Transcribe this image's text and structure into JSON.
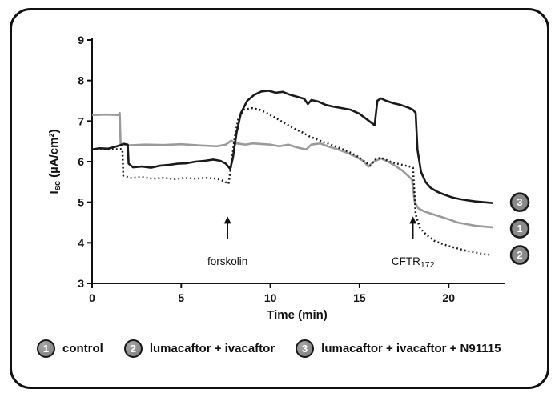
{
  "chart_data": {
    "type": "line",
    "title": "",
    "xlabel": "Time (min)",
    "ylabel": "I_sc (µA/cm²)",
    "ylabel_parts": {
      "main": "I",
      "sub": "sc",
      "units": " (µA/cm²)"
    },
    "xlim": [
      0,
      23
    ],
    "ylim": [
      3,
      9
    ],
    "xticks": [
      0,
      5,
      10,
      15,
      20
    ],
    "yticks": [
      3,
      4,
      5,
      6,
      7,
      8,
      9
    ],
    "grid": false,
    "legend_position": "bottom",
    "colors": {
      "axis": "#111111",
      "gray_series": "#9a9a9a",
      "black_series": "#1a1a1a",
      "badge_fill": "#8a8a8a"
    },
    "annotations": [
      {
        "label": "forskolin",
        "sub": "",
        "x": 7.6,
        "arrow_base": 4.1,
        "arrow_tip": 4.65,
        "text_y": 3.45
      },
      {
        "label": "CFTR",
        "sub": "172",
        "x": 18.0,
        "arrow_base": 4.1,
        "arrow_tip": 4.65,
        "text_y": 3.45
      }
    ],
    "series": [
      {
        "id": "1",
        "name": "control",
        "color": "#9a9a9a",
        "style": "solid",
        "width": 2.6,
        "end_label_y": 4.35,
        "points": [
          [
            0,
            7.15
          ],
          [
            0.8,
            7.16
          ],
          [
            1.45,
            7.15
          ],
          [
            1.55,
            7.2
          ],
          [
            1.6,
            6.45
          ],
          [
            2,
            6.4
          ],
          [
            3,
            6.42
          ],
          [
            4,
            6.41
          ],
          [
            5,
            6.43
          ],
          [
            6,
            6.4
          ],
          [
            7,
            6.38
          ],
          [
            7.5,
            6.42
          ],
          [
            7.8,
            6.52
          ],
          [
            8.1,
            6.45
          ],
          [
            8.6,
            6.42
          ],
          [
            9,
            6.45
          ],
          [
            10,
            6.42
          ],
          [
            10.5,
            6.38
          ],
          [
            11,
            6.42
          ],
          [
            11.5,
            6.35
          ],
          [
            12,
            6.3
          ],
          [
            12.3,
            6.42
          ],
          [
            12.8,
            6.45
          ],
          [
            13.2,
            6.38
          ],
          [
            13.8,
            6.3
          ],
          [
            14.3,
            6.22
          ],
          [
            14.8,
            6.12
          ],
          [
            15.2,
            6.02
          ],
          [
            15.5,
            5.88
          ],
          [
            15.8,
            6.0
          ],
          [
            16.2,
            6.08
          ],
          [
            16.6,
            6.0
          ],
          [
            17,
            5.9
          ],
          [
            17.4,
            5.78
          ],
          [
            17.8,
            5.62
          ],
          [
            17.95,
            5.55
          ],
          [
            18.1,
            5.0
          ],
          [
            18.3,
            4.85
          ],
          [
            18.6,
            4.78
          ],
          [
            19,
            4.72
          ],
          [
            19.5,
            4.65
          ],
          [
            20,
            4.58
          ],
          [
            20.5,
            4.5
          ],
          [
            21,
            4.46
          ],
          [
            21.5,
            4.42
          ],
          [
            22,
            4.4
          ],
          [
            22.5,
            4.38
          ]
        ]
      },
      {
        "id": "2",
        "name": "lumacaftor + ivacaftor",
        "color": "#1a1a1a",
        "style": "dotted",
        "width": 2.5,
        "end_label_y": 3.7,
        "points": [
          [
            0,
            6.3
          ],
          [
            0.5,
            6.32
          ],
          [
            1,
            6.3
          ],
          [
            1.6,
            6.31
          ],
          [
            1.7,
            6.3
          ],
          [
            1.75,
            5.65
          ],
          [
            2.2,
            5.6
          ],
          [
            2.8,
            5.62
          ],
          [
            3.4,
            5.58
          ],
          [
            4,
            5.6
          ],
          [
            4.6,
            5.57
          ],
          [
            5.2,
            5.6
          ],
          [
            5.8,
            5.58
          ],
          [
            6.4,
            5.6
          ],
          [
            7,
            5.58
          ],
          [
            7.4,
            5.52
          ],
          [
            7.65,
            5.45
          ],
          [
            7.8,
            5.9
          ],
          [
            8,
            6.6
          ],
          [
            8.2,
            7.05
          ],
          [
            8.5,
            7.28
          ],
          [
            9,
            7.32
          ],
          [
            9.4,
            7.28
          ],
          [
            9.8,
            7.2
          ],
          [
            10.2,
            7.1
          ],
          [
            10.6,
            7.0
          ],
          [
            11,
            6.9
          ],
          [
            11.4,
            6.8
          ],
          [
            11.8,
            6.72
          ],
          [
            12.2,
            6.62
          ],
          [
            12.6,
            6.55
          ],
          [
            13,
            6.48
          ],
          [
            13.4,
            6.42
          ],
          [
            13.8,
            6.35
          ],
          [
            14.2,
            6.28
          ],
          [
            14.6,
            6.2
          ],
          [
            15,
            6.1
          ],
          [
            15.3,
            6.0
          ],
          [
            15.6,
            5.9
          ],
          [
            15.9,
            6.05
          ],
          [
            16.2,
            6.1
          ],
          [
            16.6,
            6.02
          ],
          [
            17,
            5.96
          ],
          [
            17.4,
            5.92
          ],
          [
            17.8,
            5.88
          ],
          [
            18.0,
            5.85
          ],
          [
            18.15,
            4.7
          ],
          [
            18.4,
            4.35
          ],
          [
            18.8,
            4.18
          ],
          [
            19.2,
            4.05
          ],
          [
            19.6,
            3.98
          ],
          [
            20,
            3.92
          ],
          [
            20.5,
            3.86
          ],
          [
            21,
            3.8
          ],
          [
            21.5,
            3.76
          ],
          [
            22,
            3.72
          ],
          [
            22.4,
            3.7
          ]
        ]
      },
      {
        "id": "3",
        "name": "lumacaftor + ivacaftor + N91115",
        "color": "#1a1a1a",
        "style": "solid",
        "width": 2.6,
        "end_label_y": 5.0,
        "points": [
          [
            0,
            6.3
          ],
          [
            0.4,
            6.33
          ],
          [
            0.9,
            6.32
          ],
          [
            1.4,
            6.38
          ],
          [
            1.8,
            6.44
          ],
          [
            2.0,
            6.42
          ],
          [
            2.05,
            5.95
          ],
          [
            2.3,
            5.86
          ],
          [
            2.8,
            5.88
          ],
          [
            3.3,
            5.85
          ],
          [
            3.8,
            5.9
          ],
          [
            4.3,
            5.92
          ],
          [
            4.8,
            5.95
          ],
          [
            5.3,
            5.96
          ],
          [
            5.8,
            6.0
          ],
          [
            6.3,
            6.02
          ],
          [
            6.8,
            6.05
          ],
          [
            7.2,
            6.02
          ],
          [
            7.5,
            5.95
          ],
          [
            7.75,
            5.82
          ],
          [
            7.9,
            6.1
          ],
          [
            8.1,
            6.7
          ],
          [
            8.35,
            7.2
          ],
          [
            8.7,
            7.5
          ],
          [
            9.1,
            7.65
          ],
          [
            9.5,
            7.73
          ],
          [
            9.9,
            7.75
          ],
          [
            10.3,
            7.7
          ],
          [
            10.7,
            7.72
          ],
          [
            11.1,
            7.65
          ],
          [
            11.5,
            7.6
          ],
          [
            11.9,
            7.55
          ],
          [
            12.1,
            7.42
          ],
          [
            12.3,
            7.52
          ],
          [
            12.7,
            7.48
          ],
          [
            13.1,
            7.4
          ],
          [
            13.5,
            7.36
          ],
          [
            14,
            7.32
          ],
          [
            14.5,
            7.28
          ],
          [
            15,
            7.18
          ],
          [
            15.3,
            7.08
          ],
          [
            15.6,
            6.98
          ],
          [
            15.85,
            6.9
          ],
          [
            16.0,
            7.5
          ],
          [
            16.2,
            7.56
          ],
          [
            16.5,
            7.5
          ],
          [
            16.9,
            7.44
          ],
          [
            17.3,
            7.4
          ],
          [
            17.7,
            7.34
          ],
          [
            18.0,
            7.28
          ],
          [
            18.15,
            7.2
          ],
          [
            18.25,
            6.3
          ],
          [
            18.45,
            5.75
          ],
          [
            18.7,
            5.5
          ],
          [
            19,
            5.35
          ],
          [
            19.4,
            5.25
          ],
          [
            19.8,
            5.18
          ],
          [
            20.2,
            5.12
          ],
          [
            20.6,
            5.08
          ],
          [
            21,
            5.05
          ],
          [
            21.5,
            5.02
          ],
          [
            22,
            5.0
          ],
          [
            22.5,
            4.98
          ]
        ]
      }
    ]
  }
}
